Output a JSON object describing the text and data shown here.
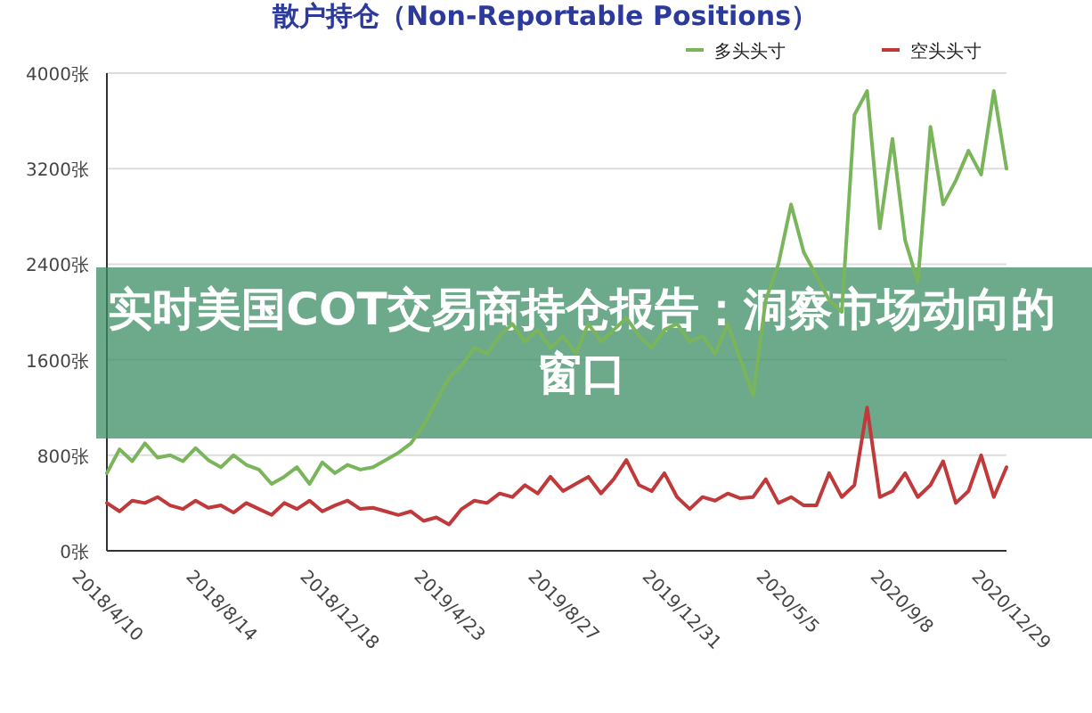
{
  "chart_data": {
    "type": "line",
    "title": "散户持仓（Non-Reportable Positions）",
    "annotations": [
      "实时美国COT交易商持仓报告：洞察市场动向的窗口"
    ],
    "x": [
      "2018-04-10",
      "2018-04-24",
      "2018-05-08",
      "2018-05-22",
      "2018-06-05",
      "2018-06-19",
      "2018-07-03",
      "2018-07-17",
      "2018-07-31",
      "2018-08-14",
      "2018-08-28",
      "2018-09-11",
      "2018-09-25",
      "2018-10-09",
      "2018-10-23",
      "2018-11-06",
      "2018-11-20",
      "2018-12-04",
      "2018-12-18",
      "2019-01-01",
      "2019-01-15",
      "2019-01-29",
      "2019-02-12",
      "2019-02-26",
      "2019-03-12",
      "2019-03-26",
      "2019-04-09",
      "2019-04-23",
      "2019-05-07",
      "2019-05-21",
      "2019-06-04",
      "2019-06-18",
      "2019-07-02",
      "2019-07-16",
      "2019-07-30",
      "2019-08-13",
      "2019-08-27",
      "2019-09-10",
      "2019-09-24",
      "2019-10-08",
      "2019-10-22",
      "2019-11-05",
      "2019-11-19",
      "2019-12-03",
      "2019-12-17",
      "2019-12-31",
      "2020-01-14",
      "2020-01-28",
      "2020-02-11",
      "2020-02-25",
      "2020-03-10",
      "2020-03-24",
      "2020-04-07",
      "2020-04-21",
      "2020-05-05",
      "2020-05-19",
      "2020-06-02",
      "2020-06-16",
      "2020-06-30",
      "2020-07-14",
      "2020-07-28",
      "2020-08-11",
      "2020-08-25",
      "2020-09-08",
      "2020-09-22",
      "2020-10-06",
      "2020-10-20",
      "2020-11-03",
      "2020-11-17",
      "2020-12-01",
      "2020-12-15",
      "2020-12-29"
    ],
    "series": [
      {
        "name": "多头头寸",
        "color": "#7ab55c",
        "values": [
          650,
          850,
          750,
          900,
          780,
          800,
          750,
          860,
          760,
          700,
          800,
          720,
          680,
          560,
          620,
          700,
          560,
          740,
          650,
          720,
          680,
          700,
          760,
          820,
          900,
          1050,
          1250,
          1450,
          1550,
          1700,
          1650,
          1800,
          1900,
          1750,
          1850,
          1700,
          1800,
          1650,
          1900,
          1750,
          1850,
          1950,
          1800,
          1700,
          1850,
          1900,
          1750,
          1800,
          1650,
          1900,
          1600,
          1300,
          2100,
          2400,
          2900,
          2500,
          2300,
          2100,
          2000,
          3650,
          3850,
          2700,
          3450,
          2600,
          2250,
          3550,
          2900,
          3100,
          3350,
          3150,
          3850,
          3200
        ]
      },
      {
        "name": "空头头寸",
        "color": "#c0393b",
        "values": [
          400,
          330,
          420,
          400,
          450,
          380,
          350,
          420,
          360,
          380,
          320,
          400,
          350,
          300,
          400,
          350,
          420,
          330,
          380,
          420,
          350,
          360,
          330,
          300,
          330,
          250,
          280,
          220,
          350,
          420,
          400,
          480,
          450,
          550,
          480,
          620,
          500,
          560,
          620,
          480,
          600,
          760,
          550,
          500,
          650,
          450,
          350,
          450,
          420,
          480,
          440,
          450,
          600,
          400,
          450,
          380,
          380,
          650,
          450,
          550,
          1200,
          450,
          500,
          650,
          450,
          550,
          750,
          400,
          500,
          800,
          450,
          700
        ]
      }
    ],
    "xlim": [
      "2018-04-10",
      "2020-12-29"
    ],
    "xticks": [
      {
        "value": "2018-04-10",
        "label": "2018/4/10"
      },
      {
        "value": "2018-08-14",
        "label": "2018/8/14"
      },
      {
        "value": "2018-12-18",
        "label": "2018/12/18"
      },
      {
        "value": "2019-04-23",
        "label": "2019/4/23"
      },
      {
        "value": "2019-08-27",
        "label": "2019/8/27"
      },
      {
        "value": "2019-12-31",
        "label": "2019/12/31"
      },
      {
        "value": "2020-05-05",
        "label": "2020/5/5"
      },
      {
        "value": "2020-09-08",
        "label": "2020/9/8"
      },
      {
        "value": "2020-12-29",
        "label": "2020/12/29"
      }
    ],
    "ylim": [
      0,
      4000
    ],
    "yticks": [
      {
        "value": 0,
        "label": "0张"
      },
      {
        "value": 800,
        "label": "800张"
      },
      {
        "value": 1600,
        "label": "1600张"
      },
      {
        "value": 2400,
        "label": "2400张"
      },
      {
        "value": 3200,
        "label": "3200张"
      },
      {
        "value": 4000,
        "label": "4000张"
      }
    ],
    "grid": "y",
    "legend": "top right",
    "marker": "none",
    "line_style": "solid"
  }
}
